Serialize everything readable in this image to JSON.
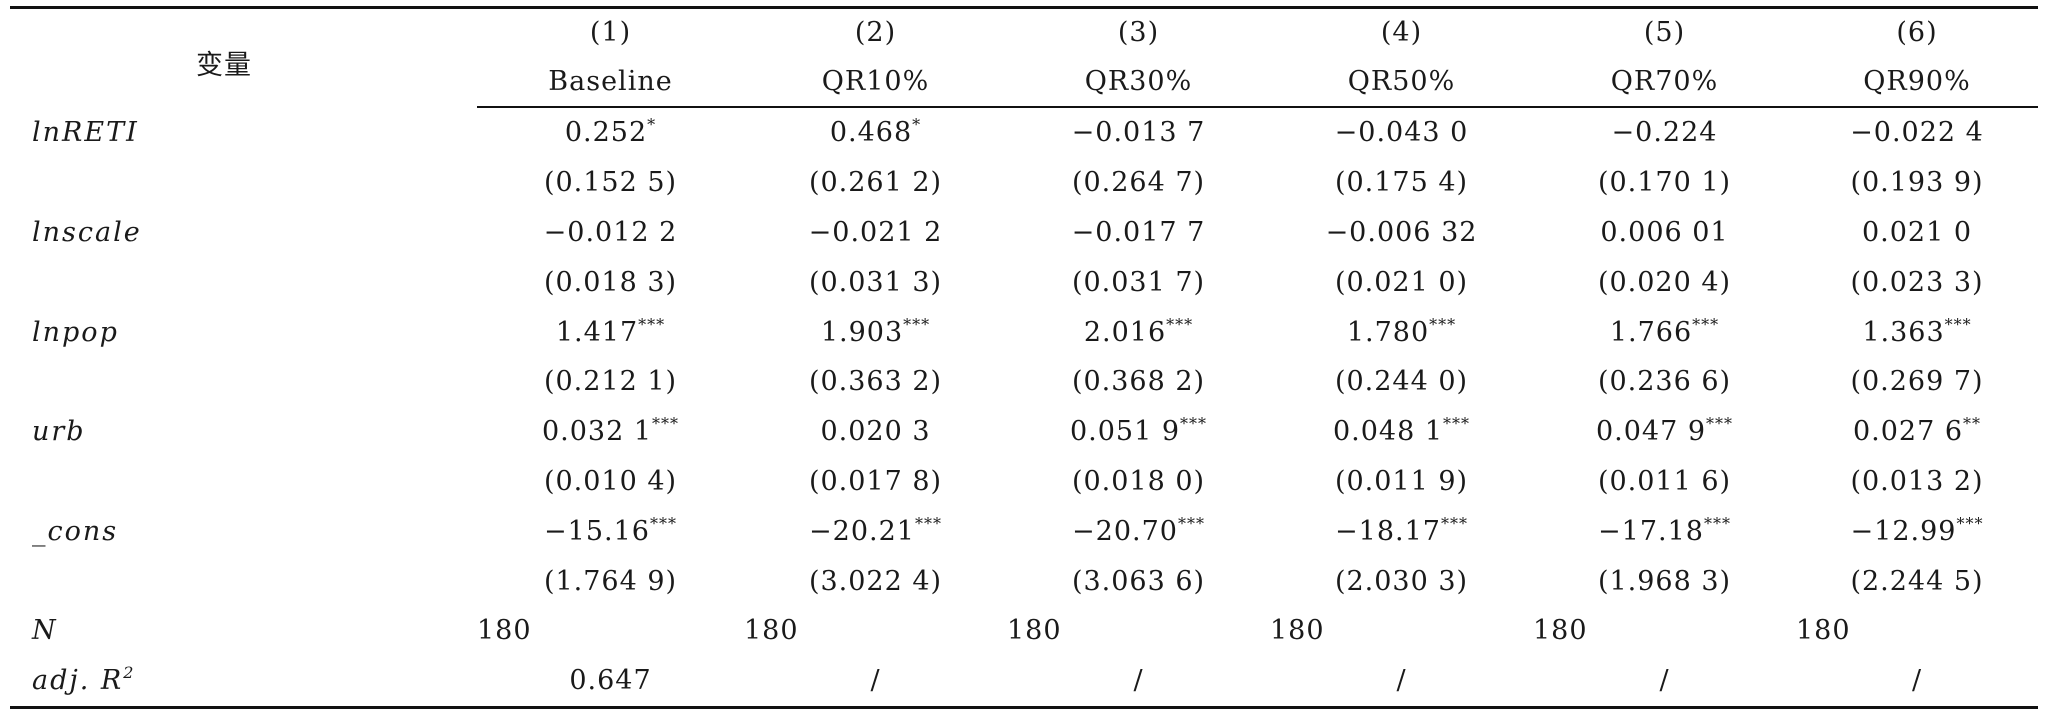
{
  "table": {
    "variable_header": "变量",
    "columns": [
      {
        "number": "(1)",
        "label": "Baseline"
      },
      {
        "number": "(2)",
        "label": "QR10%"
      },
      {
        "number": "(3)",
        "label": "QR30%"
      },
      {
        "number": "(4)",
        "label": "QR50%"
      },
      {
        "number": "(5)",
        "label": "QR70%"
      },
      {
        "number": "(6)",
        "label": "QR90%"
      }
    ],
    "rows": [
      {
        "name": "lnRETI",
        "kind": "coef",
        "cells": [
          {
            "v": "0.252",
            "s": "*"
          },
          {
            "v": "0.468",
            "s": "*"
          },
          {
            "v": "−0.013 7",
            "s": ""
          },
          {
            "v": "−0.043 0",
            "s": ""
          },
          {
            "v": "−0.224",
            "s": ""
          },
          {
            "v": "−0.022 4",
            "s": ""
          }
        ]
      },
      {
        "name": "",
        "kind": "se",
        "cells": [
          {
            "v": "(0.152 5)",
            "s": ""
          },
          {
            "v": "(0.261 2)",
            "s": ""
          },
          {
            "v": "(0.264 7)",
            "s": ""
          },
          {
            "v": "(0.175 4)",
            "s": ""
          },
          {
            "v": "(0.170 1)",
            "s": ""
          },
          {
            "v": "(0.193 9)",
            "s": ""
          }
        ]
      },
      {
        "name": "lnscale",
        "kind": "coef",
        "cells": [
          {
            "v": "−0.012 2",
            "s": ""
          },
          {
            "v": "−0.021 2",
            "s": ""
          },
          {
            "v": "−0.017 7",
            "s": ""
          },
          {
            "v": "−0.006 32",
            "s": ""
          },
          {
            "v": "0.006 01",
            "s": ""
          },
          {
            "v": "0.021 0",
            "s": ""
          }
        ]
      },
      {
        "name": "",
        "kind": "se",
        "cells": [
          {
            "v": "(0.018 3)",
            "s": ""
          },
          {
            "v": "(0.031 3)",
            "s": ""
          },
          {
            "v": "(0.031 7)",
            "s": ""
          },
          {
            "v": "(0.021 0)",
            "s": ""
          },
          {
            "v": "(0.020 4)",
            "s": ""
          },
          {
            "v": "(0.023 3)",
            "s": ""
          }
        ]
      },
      {
        "name": "lnpop",
        "kind": "coef",
        "cells": [
          {
            "v": "1.417",
            "s": "***"
          },
          {
            "v": "1.903",
            "s": "***"
          },
          {
            "v": "2.016",
            "s": "***"
          },
          {
            "v": "1.780",
            "s": "***"
          },
          {
            "v": "1.766",
            "s": "***"
          },
          {
            "v": "1.363",
            "s": "***"
          }
        ]
      },
      {
        "name": "",
        "kind": "se",
        "cells": [
          {
            "v": "(0.212 1)",
            "s": ""
          },
          {
            "v": "(0.363 2)",
            "s": ""
          },
          {
            "v": "(0.368 2)",
            "s": ""
          },
          {
            "v": "(0.244 0)",
            "s": ""
          },
          {
            "v": "(0.236 6)",
            "s": ""
          },
          {
            "v": "(0.269 7)",
            "s": ""
          }
        ]
      },
      {
        "name": "urb",
        "kind": "coef",
        "cells": [
          {
            "v": "0.032 1",
            "s": "***"
          },
          {
            "v": "0.020 3",
            "s": ""
          },
          {
            "v": "0.051 9",
            "s": "***"
          },
          {
            "v": "0.048 1",
            "s": "***"
          },
          {
            "v": "0.047 9",
            "s": "***"
          },
          {
            "v": "0.027 6",
            "s": "**"
          }
        ]
      },
      {
        "name": "",
        "kind": "se",
        "cells": [
          {
            "v": "(0.010 4)",
            "s": ""
          },
          {
            "v": "(0.017 8)",
            "s": ""
          },
          {
            "v": "(0.018 0)",
            "s": ""
          },
          {
            "v": "(0.011 9)",
            "s": ""
          },
          {
            "v": "(0.011 6)",
            "s": ""
          },
          {
            "v": "(0.013 2)",
            "s": ""
          }
        ]
      },
      {
        "name": "_cons",
        "kind": "coef",
        "cells": [
          {
            "v": "−15.16",
            "s": "***"
          },
          {
            "v": "−20.21",
            "s": "***"
          },
          {
            "v": "−20.70",
            "s": "***"
          },
          {
            "v": "−18.17",
            "s": "***"
          },
          {
            "v": "−17.18",
            "s": "***"
          },
          {
            "v": "−12.99",
            "s": "***"
          }
        ]
      },
      {
        "name": "",
        "kind": "se",
        "cells": [
          {
            "v": "(1.764 9)",
            "s": ""
          },
          {
            "v": "(3.022 4)",
            "s": ""
          },
          {
            "v": "(3.063 6)",
            "s": ""
          },
          {
            "v": "(2.030 3)",
            "s": ""
          },
          {
            "v": "(1.968 3)",
            "s": ""
          },
          {
            "v": "(2.244 5)",
            "s": ""
          }
        ]
      },
      {
        "name": "N",
        "kind": "n",
        "cells": [
          {
            "v": "180",
            "s": ""
          },
          {
            "v": "180",
            "s": ""
          },
          {
            "v": "180",
            "s": ""
          },
          {
            "v": "180",
            "s": ""
          },
          {
            "v": "180",
            "s": ""
          },
          {
            "v": "180",
            "s": ""
          }
        ]
      },
      {
        "name": "adj. R",
        "name_sup": "2",
        "kind": "r2",
        "cells": [
          {
            "v": "0.647",
            "s": ""
          },
          {
            "v": "/",
            "s": ""
          },
          {
            "v": "/",
            "s": ""
          },
          {
            "v": "/",
            "s": ""
          },
          {
            "v": "/",
            "s": ""
          },
          {
            "v": "/",
            "s": ""
          }
        ]
      }
    ]
  }
}
